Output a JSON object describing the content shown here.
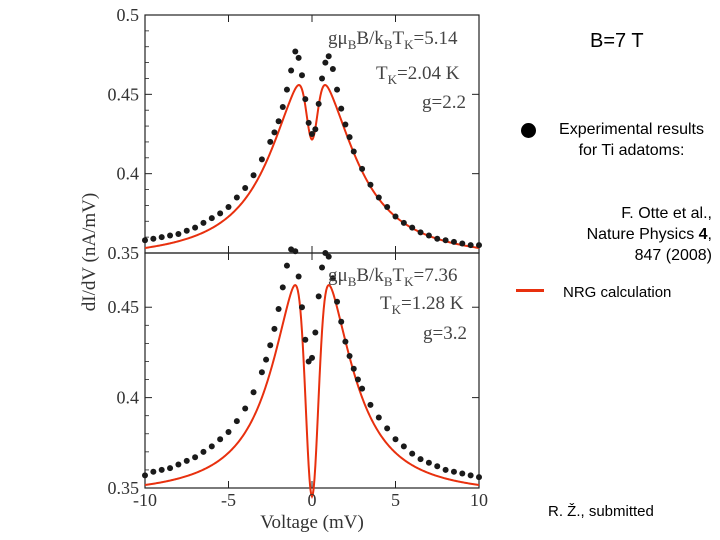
{
  "chart_data": {
    "type": "line",
    "x_axis": {
      "label": "Voltage (mV)",
      "range": [
        -10,
        10
      ],
      "ticks": [
        "-10",
        "-5",
        "0",
        "5",
        "10"
      ]
    },
    "y_axis": {
      "label": "dI/dV (nA/mV)",
      "range": [
        0.35,
        0.5
      ],
      "ticks": [
        "0.35",
        "0.4",
        "0.45",
        "0.5"
      ]
    },
    "panels": [
      {
        "id": "top",
        "y_ticks": [
          "0.5",
          "0.45",
          "0.4",
          "0.35"
        ],
        "labels": {
          "field": "gμBB/kBTK=5.14",
          "tk": "TK=2.04 K",
          "g": "g=2.2"
        },
        "model": {
          "kind": "nrg",
          "base": 0.345,
          "A": 0.128,
          "w": 2.6,
          "x0": 0.6,
          "dip": 0.045,
          "wd": 0.33
        },
        "series": [
          {
            "name": "Experimental results",
            "marker": "dot",
            "x": [
              -10,
              -9.5,
              -9,
              -8.5,
              -8,
              -7.5,
              -7,
              -6.5,
              -6,
              -5.5,
              -5,
              -4.5,
              -4,
              -3.5,
              -3,
              -2.5,
              -2.25,
              -2,
              -1.75,
              -1.5,
              -1.25,
              -1,
              -0.8,
              -0.6,
              -0.4,
              -0.2,
              0,
              0.2,
              0.4,
              0.6,
              0.8,
              1,
              1.25,
              1.5,
              1.75,
              2,
              2.25,
              2.5,
              3,
              3.5,
              4,
              4.5,
              5,
              5.5,
              6,
              6.5,
              7,
              7.5,
              8,
              8.5,
              9,
              9.5,
              10
            ],
            "y": [
              0.358,
              0.359,
              0.36,
              0.361,
              0.362,
              0.364,
              0.366,
              0.369,
              0.372,
              0.375,
              0.379,
              0.385,
              0.391,
              0.399,
              0.409,
              0.42,
              0.426,
              0.433,
              0.442,
              0.453,
              0.465,
              0.477,
              0.473,
              0.462,
              0.447,
              0.432,
              0.425,
              0.428,
              0.444,
              0.46,
              0.47,
              0.474,
              0.466,
              0.453,
              0.441,
              0.431,
              0.423,
              0.414,
              0.403,
              0.393,
              0.385,
              0.379,
              0.373,
              0.369,
              0.366,
              0.363,
              0.361,
              0.359,
              0.358,
              0.357,
              0.356,
              0.355,
              0.355
            ]
          },
          {
            "name": "NRG calculation",
            "marker": "line"
          }
        ]
      },
      {
        "id": "bottom",
        "y_ticks": [
          "0.45",
          "0.4",
          "0.35"
        ],
        "labels": {
          "field": "gμBB/kBTK=7.36",
          "tk": "TK=1.28 K",
          "g": "g=3.2"
        },
        "model": {
          "kind": "nrg",
          "base": 0.345,
          "A": 0.155,
          "w": 2.1,
          "x0": 0.8,
          "dip": 0.135,
          "wd": 0.38
        },
        "series": [
          {
            "name": "Experimental results",
            "marker": "dot",
            "x": [
              -10,
              -9.5,
              -9,
              -8.5,
              -8,
              -7.5,
              -7,
              -6.5,
              -6,
              -5.5,
              -5,
              -4.5,
              -4,
              -3.5,
              -3,
              -2.75,
              -2.5,
              -2.25,
              -2,
              -1.75,
              -1.5,
              -1.25,
              -1,
              -0.8,
              -0.6,
              -0.4,
              -0.2,
              0,
              0.2,
              0.4,
              0.6,
              0.8,
              1,
              1.25,
              1.5,
              1.75,
              2,
              2.25,
              2.5,
              2.75,
              3,
              3.5,
              4,
              4.5,
              5,
              5.5,
              6,
              6.5,
              7,
              7.5,
              8,
              8.5,
              9,
              9.5,
              10
            ],
            "y": [
              0.357,
              0.359,
              0.36,
              0.361,
              0.363,
              0.365,
              0.367,
              0.37,
              0.373,
              0.377,
              0.381,
              0.387,
              0.394,
              0.403,
              0.414,
              0.421,
              0.429,
              0.438,
              0.449,
              0.461,
              0.473,
              0.482,
              0.481,
              0.467,
              0.45,
              0.432,
              0.42,
              0.422,
              0.436,
              0.456,
              0.472,
              0.48,
              0.478,
              0.466,
              0.453,
              0.442,
              0.431,
              0.423,
              0.416,
              0.41,
              0.405,
              0.396,
              0.389,
              0.383,
              0.377,
              0.373,
              0.369,
              0.366,
              0.364,
              0.362,
              0.36,
              0.359,
              0.358,
              0.357,
              0.356
            ]
          },
          {
            "name": "NRG calculation",
            "marker": "line"
          }
        ]
      }
    ]
  },
  "annotations": {
    "title": "B=7 T",
    "legend_exp": "Experimental results for Ti adatoms:",
    "cite_line1": "F. Otte et al.,",
    "cite_line2_pre": "Nature Physics ",
    "cite_line2_bold": "4",
    "cite_line2_post": ",",
    "cite_line3": "847 (2008)",
    "legend_nrg": "NRG calculation",
    "credit": "R. Ž., submitted"
  },
  "colors": {
    "curve": "#e8300e",
    "dots": "#1a1a1a",
    "frame": "#222222"
  }
}
